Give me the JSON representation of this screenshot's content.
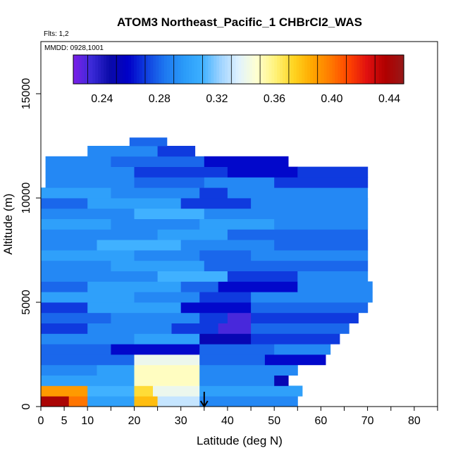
{
  "chart_data": {
    "type": "heatmap",
    "title": "ATOM3 Northeast_Pacific_1 CHBrCl2_WAS",
    "annotations": {
      "flights": "Flts: 1,2",
      "dates": "MMDD: 0928,1001"
    },
    "xlabel": "Latitude (deg N)",
    "ylabel": "Altitude (m)",
    "xlim": [
      0,
      85
    ],
    "ylim": [
      0,
      17500
    ],
    "x_ticks": [
      0,
      5,
      10,
      20,
      30,
      40,
      50,
      60,
      70,
      80
    ],
    "y_ticks": [
      0,
      5000,
      10000,
      15000
    ],
    "colorbar": {
      "range": [
        0.22,
        0.45
      ],
      "ticks": [
        0.24,
        0.28,
        0.32,
        0.36,
        0.4,
        0.44
      ],
      "tick_labels": [
        "0.24",
        "0.28",
        "0.32",
        "0.36",
        "0.40",
        "0.44"
      ],
      "colors": [
        "#7b1fe8",
        "#3a2ad8",
        "#0a0aa8",
        "#0000c8",
        "#1040e0",
        "#1e78f0",
        "#2a9af8",
        "#3cb0ff",
        "#9cd2ff",
        "#e0f2ff",
        "#ffffd0",
        "#fff27a",
        "#ffd420",
        "#ffa800",
        "#ff7a00",
        "#ff4400",
        "#e01010",
        "#b00000",
        "#961818"
      ]
    },
    "marker": {
      "latitude": 35,
      "symbol": "down-arrow"
    },
    "bands": [
      {
        "alt_range": [
          0,
          500
        ],
        "lat_range": [
          0,
          55
        ],
        "segments": [
          [
            0,
            6,
            0.44
          ],
          [
            6,
            10,
            0.4
          ],
          [
            10,
            20,
            0.3
          ],
          [
            20,
            25,
            0.38
          ],
          [
            25,
            34,
            0.33
          ],
          [
            34,
            55,
            0.29
          ]
        ]
      },
      {
        "alt_range": [
          500,
          1000
        ],
        "lat_range": [
          0,
          56
        ],
        "segments": [
          [
            0,
            10,
            0.39
          ],
          [
            10,
            20,
            0.31
          ],
          [
            20,
            24,
            0.37
          ],
          [
            24,
            34,
            0.34
          ],
          [
            34,
            56,
            0.3
          ]
        ]
      },
      {
        "alt_range": [
          1000,
          1500
        ],
        "lat_range": [
          0,
          53
        ],
        "segments": [
          [
            0,
            20,
            0.3
          ],
          [
            20,
            34,
            0.35
          ],
          [
            34,
            50,
            0.29
          ],
          [
            50,
            53,
            0.25
          ]
        ]
      },
      {
        "alt_range": [
          1500,
          2000
        ],
        "lat_range": [
          0,
          55
        ],
        "segments": [
          [
            0,
            12,
            0.29
          ],
          [
            12,
            20,
            0.3
          ],
          [
            20,
            34,
            0.35
          ],
          [
            34,
            55,
            0.29
          ]
        ]
      },
      {
        "alt_range": [
          2000,
          2500
        ],
        "lat_range": [
          0,
          61
        ],
        "segments": [
          [
            0,
            20,
            0.28
          ],
          [
            20,
            34,
            0.34
          ],
          [
            34,
            48,
            0.28
          ],
          [
            48,
            61,
            0.26
          ]
        ]
      },
      {
        "alt_range": [
          2500,
          3000
        ],
        "lat_range": [
          0,
          62
        ],
        "segments": [
          [
            0,
            15,
            0.28
          ],
          [
            15,
            34,
            0.26
          ],
          [
            34,
            50,
            0.28
          ],
          [
            50,
            62,
            0.29
          ]
        ]
      },
      {
        "alt_range": [
          3000,
          3500
        ],
        "lat_range": [
          0,
          64
        ],
        "segments": [
          [
            0,
            20,
            0.29
          ],
          [
            20,
            34,
            0.3
          ],
          [
            34,
            45,
            0.25
          ],
          [
            45,
            64,
            0.27
          ]
        ]
      },
      {
        "alt_range": [
          3500,
          4000
        ],
        "lat_range": [
          0,
          66
        ],
        "segments": [
          [
            0,
            10,
            0.27
          ],
          [
            10,
            28,
            0.29
          ],
          [
            28,
            38,
            0.27
          ],
          [
            38,
            45,
            0.23
          ],
          [
            45,
            66,
            0.28
          ]
        ]
      },
      {
        "alt_range": [
          4000,
          4500
        ],
        "lat_range": [
          0,
          68
        ],
        "segments": [
          [
            0,
            15,
            0.28
          ],
          [
            15,
            34,
            0.29
          ],
          [
            34,
            40,
            0.27
          ],
          [
            40,
            45,
            0.23
          ],
          [
            45,
            68,
            0.27
          ]
        ]
      },
      {
        "alt_range": [
          4500,
          5000
        ],
        "lat_range": [
          0,
          70
        ],
        "segments": [
          [
            0,
            10,
            0.27
          ],
          [
            10,
            30,
            0.3
          ],
          [
            30,
            45,
            0.26
          ],
          [
            45,
            70,
            0.28
          ]
        ]
      },
      {
        "alt_range": [
          5000,
          5500
        ],
        "lat_range": [
          0,
          71
        ],
        "segments": [
          [
            0,
            20,
            0.3
          ],
          [
            20,
            34,
            0.29
          ],
          [
            34,
            45,
            0.27
          ],
          [
            45,
            71,
            0.29
          ]
        ]
      },
      {
        "alt_range": [
          5500,
          6000
        ],
        "lat_range": [
          0,
          71
        ],
        "segments": [
          [
            0,
            10,
            0.28
          ],
          [
            10,
            30,
            0.3
          ],
          [
            30,
            38,
            0.28
          ],
          [
            38,
            55,
            0.26
          ],
          [
            55,
            71,
            0.29
          ]
        ]
      },
      {
        "alt_range": [
          6000,
          6500
        ],
        "lat_range": [
          0,
          70
        ],
        "segments": [
          [
            0,
            25,
            0.29
          ],
          [
            25,
            40,
            0.31
          ],
          [
            40,
            55,
            0.27
          ],
          [
            55,
            70,
            0.29
          ]
        ]
      },
      {
        "alt_range": [
          6500,
          7000
        ],
        "lat_range": [
          0,
          70
        ],
        "segments": [
          [
            0,
            15,
            0.29
          ],
          [
            15,
            35,
            0.3
          ],
          [
            35,
            50,
            0.28
          ],
          [
            50,
            70,
            0.28
          ]
        ]
      },
      {
        "alt_range": [
          7000,
          7500
        ],
        "lat_range": [
          0,
          70
        ],
        "segments": [
          [
            0,
            20,
            0.3
          ],
          [
            20,
            34,
            0.29
          ],
          [
            34,
            45,
            0.28
          ],
          [
            45,
            70,
            0.29
          ]
        ]
      },
      {
        "alt_range": [
          7500,
          8000
        ],
        "lat_range": [
          0,
          70
        ],
        "segments": [
          [
            0,
            12,
            0.29
          ],
          [
            12,
            30,
            0.31
          ],
          [
            30,
            50,
            0.29
          ],
          [
            50,
            70,
            0.28
          ]
        ]
      },
      {
        "alt_range": [
          8000,
          8500
        ],
        "lat_range": [
          0,
          70
        ],
        "segments": [
          [
            0,
            25,
            0.29
          ],
          [
            25,
            40,
            0.3
          ],
          [
            40,
            70,
            0.28
          ]
        ]
      },
      {
        "alt_range": [
          8500,
          9000
        ],
        "lat_range": [
          0,
          70
        ],
        "segments": [
          [
            0,
            15,
            0.3
          ],
          [
            15,
            34,
            0.29
          ],
          [
            34,
            50,
            0.3
          ],
          [
            50,
            70,
            0.29
          ]
        ]
      },
      {
        "alt_range": [
          9000,
          9500
        ],
        "lat_range": [
          0,
          70
        ],
        "segments": [
          [
            0,
            20,
            0.29
          ],
          [
            20,
            35,
            0.31
          ],
          [
            35,
            55,
            0.29
          ],
          [
            55,
            70,
            0.29
          ]
        ]
      },
      {
        "alt_range": [
          9500,
          10000
        ],
        "lat_range": [
          0,
          70
        ],
        "segments": [
          [
            0,
            10,
            0.28
          ],
          [
            10,
            30,
            0.3
          ],
          [
            30,
            45,
            0.27
          ],
          [
            45,
            70,
            0.29
          ]
        ]
      },
      {
        "alt_range": [
          10000,
          10500
        ],
        "lat_range": [
          0,
          70
        ],
        "segments": [
          [
            0,
            15,
            0.3
          ],
          [
            15,
            34,
            0.29
          ],
          [
            34,
            40,
            0.27
          ],
          [
            40,
            70,
            0.29
          ]
        ]
      },
      {
        "alt_range": [
          10500,
          11000
        ],
        "lat_range": [
          1,
          70
        ],
        "segments": [
          [
            1,
            20,
            0.29
          ],
          [
            20,
            35,
            0.28
          ],
          [
            35,
            50,
            0.29
          ],
          [
            50,
            70,
            0.27
          ]
        ]
      },
      {
        "alt_range": [
          11000,
          11500
        ],
        "lat_range": [
          1,
          70
        ],
        "segments": [
          [
            1,
            20,
            0.29
          ],
          [
            20,
            40,
            0.27
          ],
          [
            40,
            55,
            0.26
          ],
          [
            55,
            70,
            0.27
          ]
        ]
      },
      {
        "alt_range": [
          11500,
          12000
        ],
        "lat_range": [
          1,
          53
        ],
        "segments": [
          [
            1,
            15,
            0.29
          ],
          [
            15,
            35,
            0.28
          ],
          [
            35,
            53,
            0.26
          ]
        ]
      },
      {
        "alt_range": [
          12000,
          12500
        ],
        "lat_range": [
          10,
          33
        ],
        "segments": [
          [
            10,
            25,
            0.29
          ],
          [
            25,
            33,
            0.27
          ]
        ]
      },
      {
        "alt_range": [
          12500,
          12900
        ],
        "lat_range": [
          19,
          27
        ],
        "segments": [
          [
            19,
            27,
            0.28
          ]
        ]
      }
    ]
  }
}
